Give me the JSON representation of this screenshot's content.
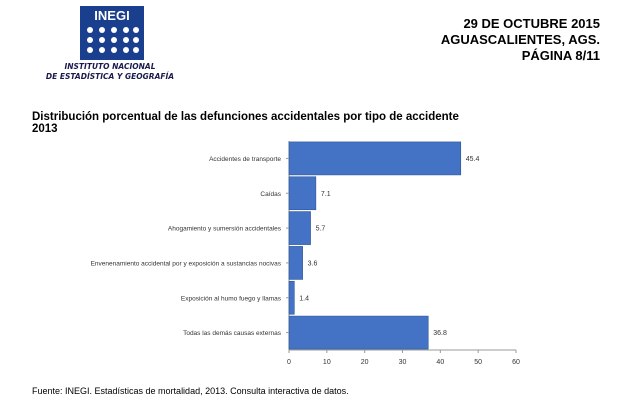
{
  "header": {
    "logo_text": "INEGI",
    "institute_line1": "INSTITUTO NACIONAL",
    "institute_line2": "DE ESTADÍSTICA Y GEOGRAFÍA",
    "date": "29 DE OCTUBRE 2015",
    "location": "AGUASCALIENTES, AGS.",
    "page": "PÁGINA 8/11"
  },
  "colors": {
    "bar_fill": "#4472c4",
    "bar_stroke": "#2f5597",
    "logo_blue": "#1b3f8f"
  },
  "chart_data": {
    "type": "bar",
    "orientation": "horizontal",
    "title": "Distribución  porcentual de las defunciones accidentales por tipo de accidente",
    "subtitle": "2013",
    "categories": [
      "Accidentes de transporte",
      "Caídas",
      "Ahogamiento y sumersión accidentales",
      "Envenenamiento accidental por y exposición a sustancias nocivas",
      "Exposición al humo fuego y llamas",
      "Todas las demás causas externas"
    ],
    "values": [
      45.4,
      7.1,
      5.7,
      3.6,
      1.4,
      36.8
    ],
    "value_labels": [
      "45.4",
      "7.1",
      "5.7",
      "3.6",
      "1.4",
      "36.8"
    ],
    "xlim": [
      0,
      60
    ],
    "xticks": [
      "0",
      "10",
      "20",
      "30",
      "40",
      "50",
      "60"
    ],
    "grid": false,
    "legend": "none"
  },
  "footer": {
    "source": "Fuente: INEGI.  Estadísticas de mortalidad, 2013. Consulta interactiva de datos."
  }
}
